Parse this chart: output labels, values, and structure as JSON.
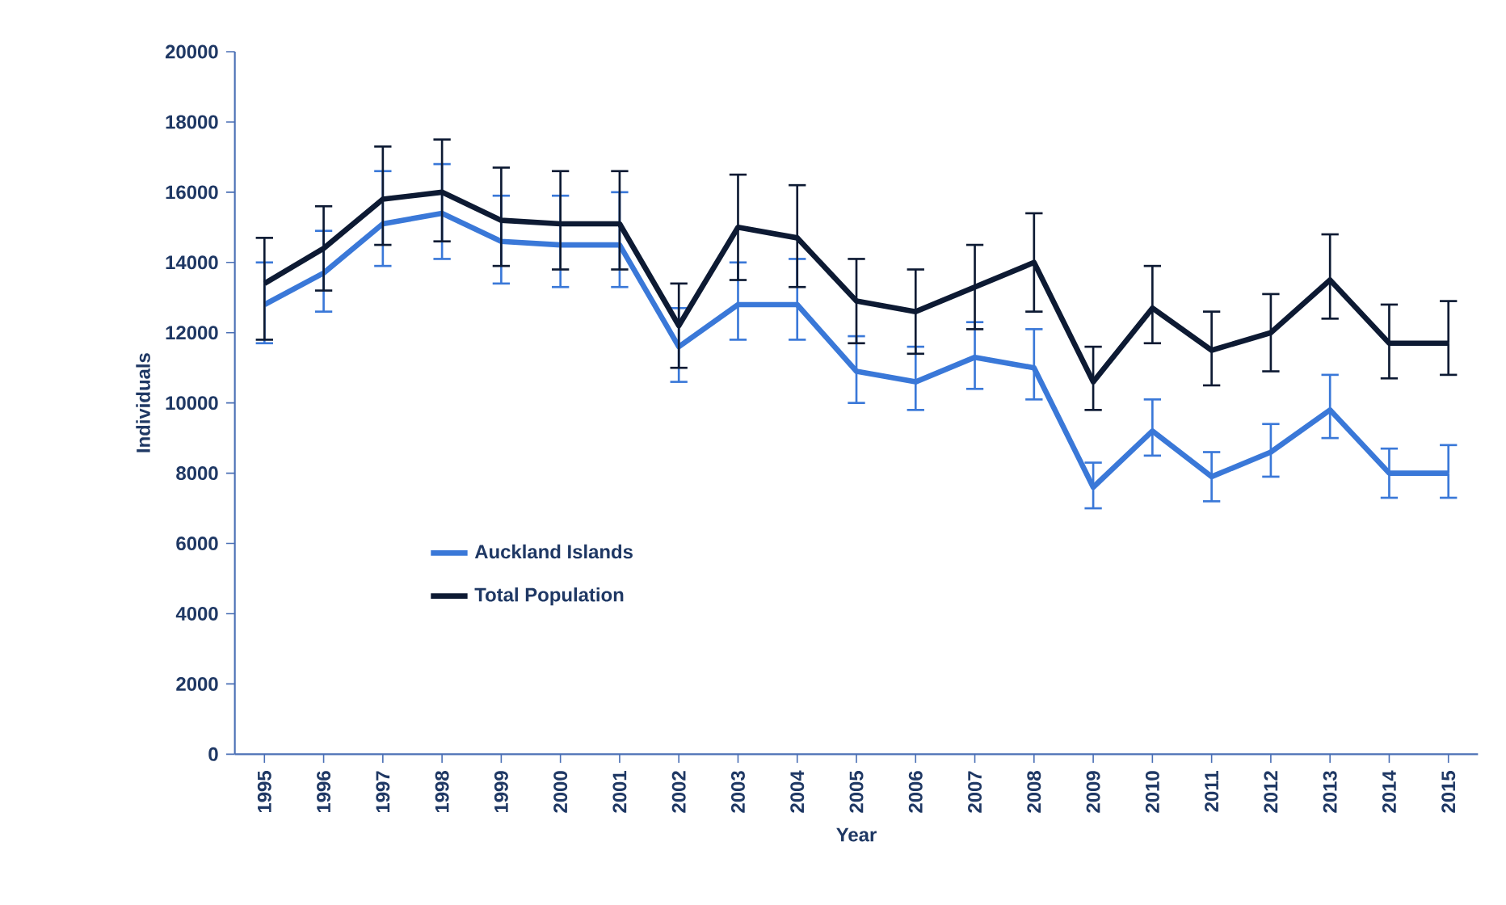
{
  "chart_data": {
    "type": "line",
    "xlabel": "Year",
    "ylabel": "Individuals",
    "categories": [
      "1995",
      "1996",
      "1997",
      "1998",
      "1999",
      "2000",
      "2001",
      "2002",
      "2003",
      "2004",
      "2005",
      "2006",
      "2007",
      "2008",
      "2009",
      "2010",
      "2011",
      "2012",
      "2013",
      "2014",
      "2015"
    ],
    "series": [
      {
        "name": "Auckland Islands",
        "color": "#3a78d8",
        "values": [
          12800,
          13700,
          15100,
          15400,
          14600,
          14500,
          14500,
          11600,
          12800,
          12800,
          10900,
          10600,
          11300,
          11000,
          7600,
          9200,
          7900,
          8600,
          9800,
          8000,
          8000
        ],
        "errors": [
          [
            11700,
            14000
          ],
          [
            12600,
            14900
          ],
          [
            13900,
            16600
          ],
          [
            14100,
            16800
          ],
          [
            13400,
            15900
          ],
          [
            13300,
            15900
          ],
          [
            13300,
            16000
          ],
          [
            10600,
            12700
          ],
          [
            11800,
            14000
          ],
          [
            11800,
            14100
          ],
          [
            10000,
            11900
          ],
          [
            9800,
            11600
          ],
          [
            10400,
            12300
          ],
          [
            10100,
            12100
          ],
          [
            7000,
            8300
          ],
          [
            8500,
            10100
          ],
          [
            7200,
            8600
          ],
          [
            7900,
            9400
          ],
          [
            9000,
            10800
          ],
          [
            7300,
            8700
          ],
          [
            7300,
            8800
          ]
        ]
      },
      {
        "name": "Total Population",
        "color": "#0d1a33",
        "values": [
          13400,
          14400,
          15800,
          16000,
          15200,
          15100,
          15100,
          12200,
          15000,
          14700,
          12900,
          12600,
          13300,
          14000,
          10600,
          12700,
          11500,
          12000,
          13500,
          11700,
          11700
        ],
        "errors": [
          [
            11800,
            14700
          ],
          [
            13200,
            15600
          ],
          [
            14500,
            17300
          ],
          [
            14600,
            17500
          ],
          [
            13900,
            16700
          ],
          [
            13800,
            16600
          ],
          [
            13800,
            16600
          ],
          [
            11000,
            13400
          ],
          [
            13500,
            16500
          ],
          [
            13300,
            16200
          ],
          [
            11700,
            14100
          ],
          [
            11400,
            13800
          ],
          [
            12100,
            14500
          ],
          [
            12600,
            15400
          ],
          [
            9800,
            11600
          ],
          [
            11700,
            13900
          ],
          [
            10500,
            12600
          ],
          [
            10900,
            13100
          ],
          [
            12400,
            14800
          ],
          [
            10700,
            12800
          ],
          [
            10800,
            12900
          ]
        ]
      }
    ],
    "ylim": [
      0,
      20000
    ],
    "yticks": [
      0,
      2000,
      4000,
      6000,
      8000,
      10000,
      12000,
      14000,
      16000,
      18000,
      20000
    ],
    "legend": "bottom left",
    "grid": false,
    "marker": "none",
    "line_style": "solid"
  }
}
